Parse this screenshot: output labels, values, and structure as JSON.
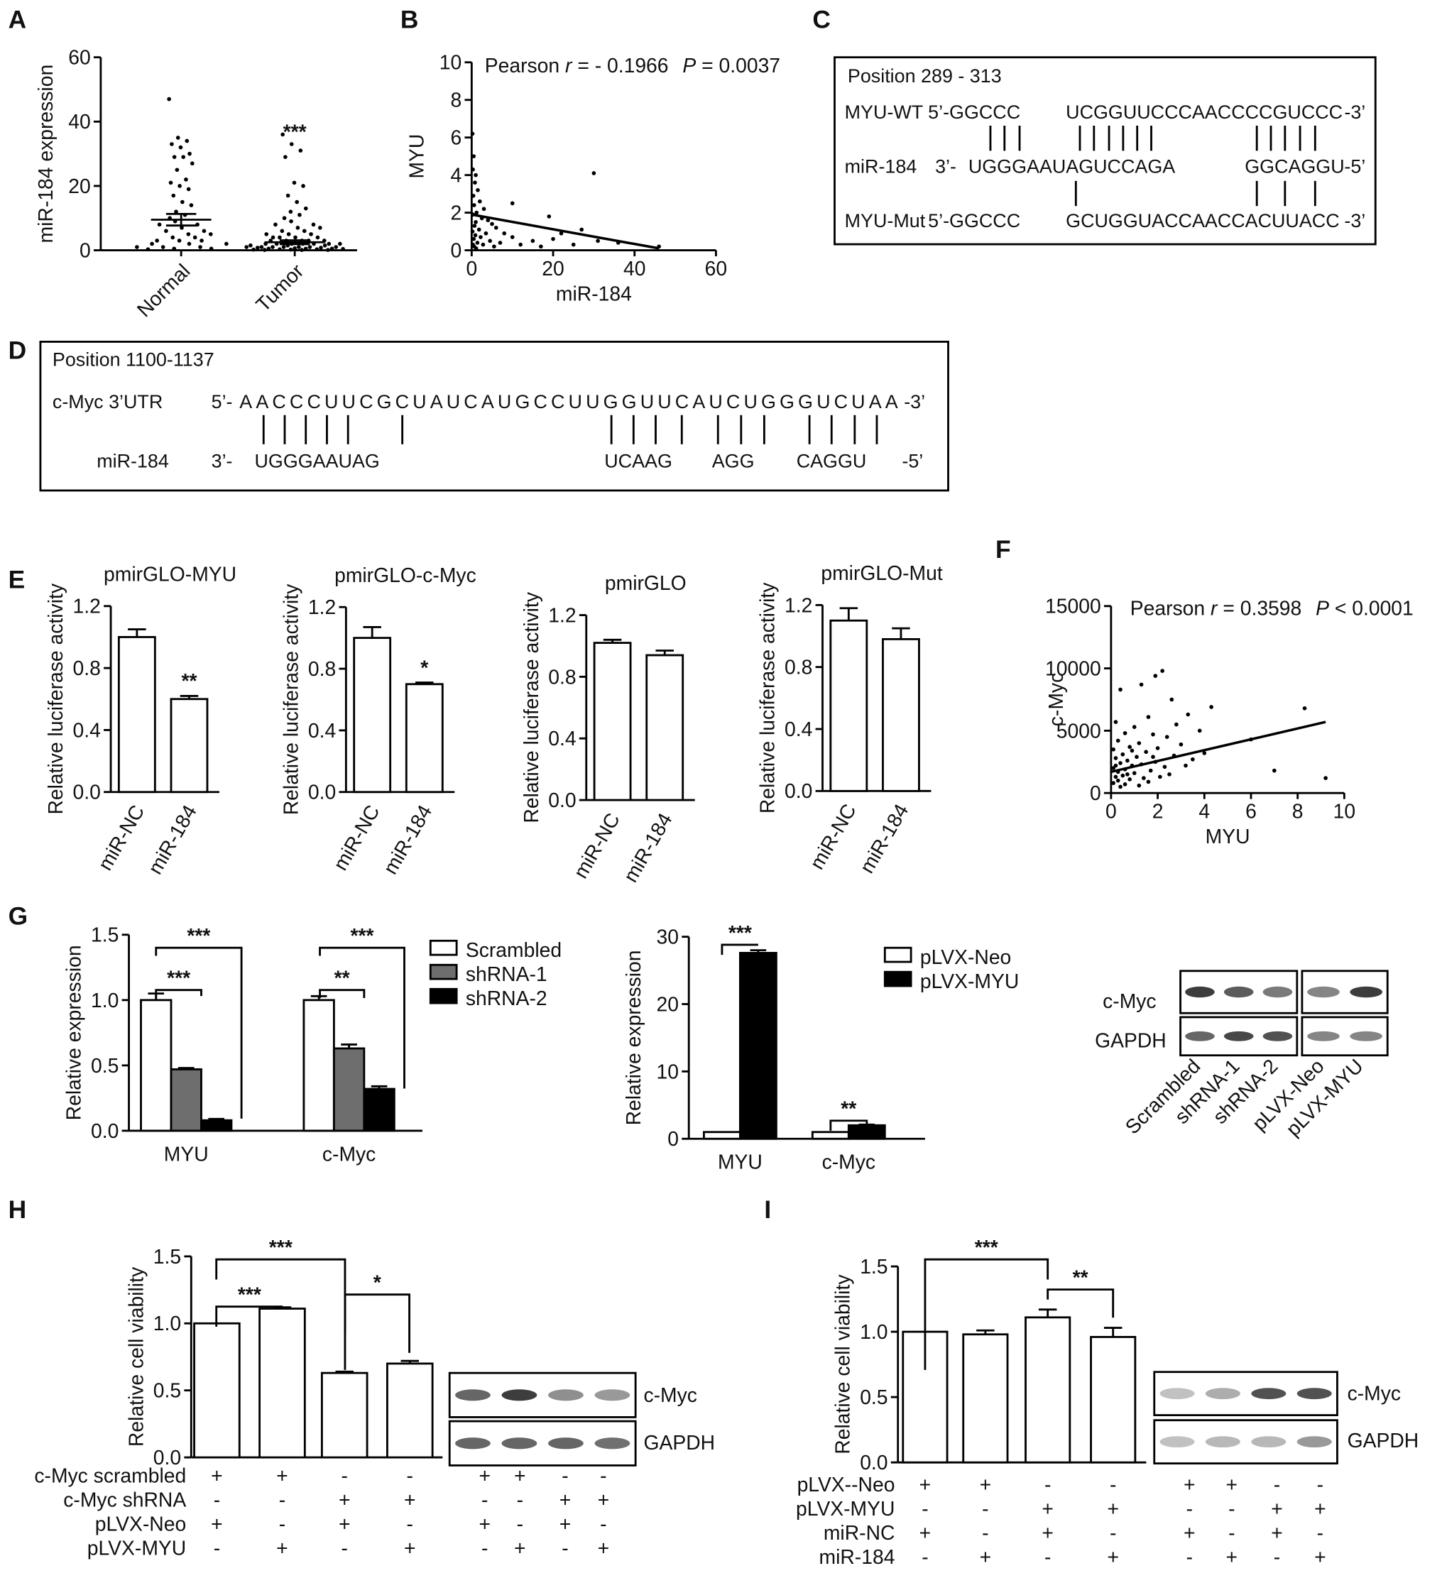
{
  "panel_labels": [
    "A",
    "B",
    "C",
    "D",
    "E",
    "F",
    "G",
    "H",
    "I"
  ],
  "chart_data": [
    {
      "id": "A",
      "type": "scatter",
      "categories": [
        "Normal",
        "Tumor"
      ],
      "ylabel": "miR-184 expression",
      "ylim": [
        0,
        60
      ],
      "yticks": [
        "0",
        "20",
        "40",
        "60"
      ],
      "mean": [
        9.5,
        2.5
      ],
      "sem": [
        1.8,
        0.6
      ],
      "significance": [
        "",
        "***"
      ],
      "points": {
        "Normal": [
          47,
          35,
          34,
          33,
          32,
          30,
          29,
          29,
          27,
          25,
          22,
          21,
          20,
          19,
          17,
          15,
          14,
          12,
          11,
          10,
          9,
          8,
          8,
          7,
          6,
          6,
          5,
          5,
          4,
          4,
          3,
          3,
          3,
          2,
          2,
          2,
          1,
          1,
          1,
          0.5,
          0.5,
          0.3
        ],
        "Tumor": [
          36,
          33,
          31,
          29,
          21,
          20,
          17,
          15,
          13,
          12,
          11,
          10,
          9,
          8,
          8,
          7,
          7,
          6,
          6,
          5,
          5,
          5,
          4,
          4,
          4,
          4,
          3,
          3,
          3,
          3,
          3,
          2,
          2,
          2,
          2,
          2,
          2,
          2,
          1.5,
          1.5,
          1.5,
          1,
          1,
          1,
          1,
          1,
          1,
          1,
          0.8,
          0.8,
          0.6,
          0.5,
          0.5,
          0.5,
          0.4,
          0.3,
          0.3,
          0.2,
          0.2,
          0.1,
          0.1,
          0.1
        ]
      }
    },
    {
      "id": "B",
      "type": "scatter",
      "xlabel": "miR-184",
      "ylabel": "MYU",
      "xlim": [
        0,
        60
      ],
      "ylim": [
        0,
        10
      ],
      "xticks": [
        "0",
        "20",
        "40",
        "60"
      ],
      "yticks": [
        "0",
        "2",
        "4",
        "6",
        "8",
        "10"
      ],
      "annotation": {
        "pearson": "Pearson ",
        "r": "r",
        "r_value": " = - 0.1966",
        "p": "P",
        "p_value": " = 0.0037"
      },
      "fit": {
        "x": [
          0,
          46
        ],
        "y": [
          1.9,
          0.1
        ]
      },
      "points": [
        [
          0.2,
          6.2
        ],
        [
          0.5,
          5.0
        ],
        [
          0.3,
          4.3
        ],
        [
          1,
          4.0
        ],
        [
          0.8,
          3.6
        ],
        [
          1.5,
          3.2
        ],
        [
          0.4,
          2.9
        ],
        [
          2,
          2.6
        ],
        [
          0.6,
          2.4
        ],
        [
          3,
          2.2
        ],
        [
          1.2,
          2.0
        ],
        [
          0.3,
          1.9
        ],
        [
          2.5,
          1.7
        ],
        [
          4,
          1.6
        ],
        [
          1,
          1.5
        ],
        [
          5,
          1.4
        ],
        [
          0.7,
          1.3
        ],
        [
          6,
          1.2
        ],
        [
          1.8,
          1.1
        ],
        [
          0.2,
          1.0
        ],
        [
          3.5,
          0.9
        ],
        [
          8,
          0.9
        ],
        [
          0.9,
          0.8
        ],
        [
          2.2,
          0.7
        ],
        [
          10,
          0.7
        ],
        [
          0.5,
          0.6
        ],
        [
          4.5,
          0.5
        ],
        [
          1.4,
          0.4
        ],
        [
          7,
          0.4
        ],
        [
          0.3,
          0.3
        ],
        [
          2.8,
          0.3
        ],
        [
          12,
          0.3
        ],
        [
          0.6,
          0.2
        ],
        [
          5.5,
          0.2
        ],
        [
          1.1,
          0.1
        ],
        [
          20,
          0.6
        ],
        [
          22,
          0.9
        ],
        [
          19,
          1.8
        ],
        [
          10,
          2.5
        ],
        [
          30,
          4.1
        ],
        [
          27,
          1.1
        ],
        [
          31,
          0.5
        ],
        [
          36,
          0.4
        ],
        [
          46,
          0.2
        ],
        [
          15,
          0.5
        ],
        [
          25,
          0.3
        ],
        [
          17,
          0.2
        ]
      ]
    },
    {
      "id": "E1",
      "type": "bar",
      "title": "pmirGLO-MYU",
      "ylabel": "Relative luciferase activity",
      "categories": [
        "miR-NC",
        "miR-184"
      ],
      "values": [
        1.0,
        0.6
      ],
      "errors": [
        0.05,
        0.02
      ],
      "significance": [
        "",
        "**"
      ],
      "ylim": [
        0,
        1.2
      ],
      "yticks": [
        "0.0",
        "0.4",
        "0.8",
        "1.2"
      ]
    },
    {
      "id": "E2",
      "type": "bar",
      "title": "pmirGLO-c-Myc",
      "ylabel": "Relative luciferase activity",
      "categories": [
        "miR-NC",
        "miR-184"
      ],
      "values": [
        1.0,
        0.7
      ],
      "errors": [
        0.07,
        0.01
      ],
      "significance": [
        "",
        "*"
      ],
      "ylim": [
        0,
        1.2
      ],
      "yticks": [
        "0.0",
        "0.4",
        "0.8",
        "1.2"
      ]
    },
    {
      "id": "E3",
      "type": "bar",
      "title": "pmirGLO",
      "ylabel": "Relative luciferase activity",
      "categories": [
        "miR-NC",
        "miR-184"
      ],
      "values": [
        1.02,
        0.94
      ],
      "errors": [
        0.02,
        0.03
      ],
      "significance": [
        "",
        ""
      ],
      "ylim": [
        0,
        1.2
      ],
      "yticks": [
        "0.0",
        "0.4",
        "0.8",
        "1.2"
      ]
    },
    {
      "id": "E4",
      "type": "bar",
      "title": "pmirGLO-Mut",
      "ylabel": "Relative luciferase activity",
      "categories": [
        "miR-NC",
        "miR-184"
      ],
      "values": [
        1.1,
        0.98
      ],
      "errors": [
        0.08,
        0.07
      ],
      "significance": [
        "",
        ""
      ],
      "ylim": [
        0,
        1.2
      ],
      "yticks": [
        "0.0",
        "0.4",
        "0.8",
        "1.2"
      ]
    },
    {
      "id": "F",
      "type": "scatter",
      "xlabel": "MYU",
      "ylabel": "c-Myc",
      "xlim": [
        0,
        10
      ],
      "ylim": [
        0,
        15000
      ],
      "xticks": [
        "0",
        "2",
        "4",
        "6",
        "8",
        "10"
      ],
      "yticks": [
        "0",
        "5000",
        "10000",
        "15000"
      ],
      "annotation": {
        "pearson": "Pearson ",
        "r": "r",
        "r_value": " = 0.3598",
        "p": "P",
        "p_value": " < 0.0001"
      },
      "fit": {
        "x": [
          0,
          9.2
        ],
        "y": [
          1700,
          5700
        ]
      },
      "points": [
        [
          2.2,
          9800
        ],
        [
          1.9,
          9400
        ],
        [
          1.3,
          8700
        ],
        [
          0.4,
          8300
        ],
        [
          2.6,
          7500
        ],
        [
          4.3,
          6900
        ],
        [
          8.3,
          6800
        ],
        [
          3.3,
          6300
        ],
        [
          1.6,
          6100
        ],
        [
          0.2,
          5700
        ],
        [
          2.8,
          5500
        ],
        [
          1,
          5300
        ],
        [
          3.8,
          5000
        ],
        [
          0.6,
          4800
        ],
        [
          1.8,
          4700
        ],
        [
          2.4,
          4500
        ],
        [
          6,
          4300
        ],
        [
          0.3,
          4200
        ],
        [
          1.2,
          4000
        ],
        [
          3,
          3900
        ],
        [
          0.8,
          3700
        ],
        [
          2,
          3600
        ],
        [
          0.1,
          3500
        ],
        [
          1.5,
          3300
        ],
        [
          4,
          3200
        ],
        [
          0.5,
          3100
        ],
        [
          2.7,
          3000
        ],
        [
          1.1,
          2900
        ],
        [
          0.2,
          2800
        ],
        [
          3.5,
          2700
        ],
        [
          0.7,
          2600
        ],
        [
          1.9,
          2500
        ],
        [
          0.4,
          2400
        ],
        [
          1.3,
          2300
        ],
        [
          0.9,
          2200
        ],
        [
          2.3,
          2100
        ],
        [
          0.1,
          2000
        ],
        [
          0.6,
          1900
        ],
        [
          1.7,
          1800
        ],
        [
          0.3,
          1700
        ],
        [
          1,
          1600
        ],
        [
          2.5,
          1500
        ],
        [
          0.5,
          1400
        ],
        [
          0.2,
          1300
        ],
        [
          1.4,
          1200
        ],
        [
          7,
          1800
        ],
        [
          9.2,
          1200
        ],
        [
          0.8,
          1100
        ],
        [
          0.3,
          1000
        ],
        [
          1.6,
          900
        ],
        [
          0.1,
          800
        ],
        [
          0.6,
          700
        ],
        [
          1.2,
          600
        ],
        [
          0.4,
          500
        ],
        [
          2.1,
          1300
        ],
        [
          3.2,
          2200
        ],
        [
          0.9,
          3400
        ],
        [
          1.8,
          2900
        ],
        [
          0.2,
          2200
        ],
        [
          0.7,
          1500
        ]
      ]
    },
    {
      "id": "G1",
      "type": "bar",
      "ylabel": "Relative expression",
      "categories": [
        "MYU",
        "c-Myc"
      ],
      "ylim": [
        0,
        1.5
      ],
      "yticks": [
        "0.0",
        "0.5",
        "1.0",
        "1.5"
      ],
      "series": [
        {
          "name": "Scrambled",
          "values": [
            1.0,
            1.0
          ],
          "errors": [
            0.05,
            0.03
          ],
          "color": "#ffffff"
        },
        {
          "name": "shRNA-1",
          "values": [
            0.47,
            0.63
          ],
          "errors": [
            0.01,
            0.03
          ],
          "color": "#6e6e6e"
        },
        {
          "name": "shRNA-2",
          "values": [
            0.08,
            0.32
          ],
          "errors": [
            0.01,
            0.02
          ],
          "color": "#000000"
        }
      ],
      "significance": [
        "***",
        "***",
        "**",
        "***"
      ]
    },
    {
      "id": "G2",
      "type": "bar",
      "ylabel": "Relative expression",
      "categories": [
        "MYU",
        "c-Myc"
      ],
      "ylim": [
        0,
        30
      ],
      "yticks": [
        "0",
        "10",
        "20",
        "30"
      ],
      "series": [
        {
          "name": "pLVX-Neo",
          "values": [
            1.0,
            1.0
          ],
          "errors": [
            0,
            0
          ],
          "color": "#ffffff"
        },
        {
          "name": "pLVX-MYU",
          "values": [
            27.6,
            2.0
          ],
          "errors": [
            0.4,
            0.1
          ],
          "color": "#000000"
        }
      ],
      "significance": [
        "***",
        "**"
      ]
    },
    {
      "id": "H",
      "type": "bar",
      "ylabel": "Relative cell viability",
      "values": [
        1.0,
        1.11,
        0.63,
        0.7
      ],
      "errors": [
        0,
        0.01,
        0.01,
        0.02
      ],
      "ylim": [
        0,
        1.5
      ],
      "yticks": [
        "0.0",
        "0.5",
        "1.0",
        "1.5"
      ],
      "significance": [
        "***",
        "***",
        "*"
      ]
    },
    {
      "id": "I",
      "type": "bar",
      "ylabel": "Relative cell viability",
      "values": [
        1.0,
        0.98,
        1.11,
        0.96
      ],
      "errors": [
        0,
        0.03,
        0.06,
        0.07
      ],
      "ylim": [
        0,
        1.5
      ],
      "yticks": [
        "0.0",
        "0.5",
        "1.0",
        "1.5"
      ],
      "significance": [
        "***",
        "**"
      ]
    }
  ],
  "sequences": {
    "C": {
      "title": "Position 289 - 313",
      "rows": [
        {
          "label": "MYU-WT",
          "prefix": "5’-GGCCC",
          "seq": "UCGGUUCCCAACCCCGUCCC",
          "suffix": "-3’"
        },
        {
          "label": "miR-184",
          "prefix": "3’-",
          "seq": "UGGGAAUAGUCCAGA",
          "seq2": "GGCAGGU",
          "suffix": "-5’"
        },
        {
          "label": "MYU-Mut",
          "prefix": "5’-GGCCC",
          "seq": "GCUGGUACCAACCACUUACC",
          "suffix": "-3’"
        }
      ]
    },
    "D": {
      "title": "Position 1100-1137",
      "rows": [
        {
          "label": "c-Myc 3’UTR",
          "prefix": "5’-",
          "seq": "AACCCUUCGCUAUCAUGCCUUGGUUCAUCUGGGUCUAA",
          "suffix": "-3’"
        },
        {
          "label": "miR-184",
          "prefix": "3’-",
          "parts": [
            "UGGGAAUAG",
            "UCAAG",
            "AGG",
            "CAGGU"
          ],
          "suffix": "-5’"
        }
      ]
    }
  },
  "blots": {
    "G": {
      "rows": [
        "c-Myc",
        "GAPDH"
      ],
      "lanes": [
        "Scrambled",
        "shRNA-1",
        "shRNA-2",
        "pLVX-Neo",
        "pLVX-MYU"
      ]
    },
    "H": {
      "rows": [
        "c-Myc",
        "GAPDH"
      ]
    },
    "I": {
      "rows": [
        "c-Myc",
        "GAPDH"
      ]
    }
  },
  "conditions": {
    "H": [
      {
        "label": "c-Myc scrambled",
        "marks": [
          "+",
          "+",
          "-",
          "-"
        ]
      },
      {
        "label": "c-Myc shRNA",
        "marks": [
          "-",
          "-",
          "+",
          "+"
        ]
      },
      {
        "label": "pLVX-Neo",
        "marks": [
          "+",
          "-",
          "+",
          "-"
        ]
      },
      {
        "label": "pLVX-MYU",
        "marks": [
          "-",
          "+",
          "-",
          "+"
        ]
      }
    ],
    "I": [
      {
        "label": "pLVX--Neo",
        "marks": [
          "+",
          "+",
          "-",
          "-"
        ]
      },
      {
        "label": "pLVX-MYU",
        "marks": [
          "-",
          "-",
          "+",
          "+"
        ]
      },
      {
        "label": "miR-NC",
        "marks": [
          "+",
          "-",
          "+",
          "-"
        ]
      },
      {
        "label": "miR-184",
        "marks": [
          "-",
          "+",
          "-",
          "+"
        ]
      }
    ]
  }
}
